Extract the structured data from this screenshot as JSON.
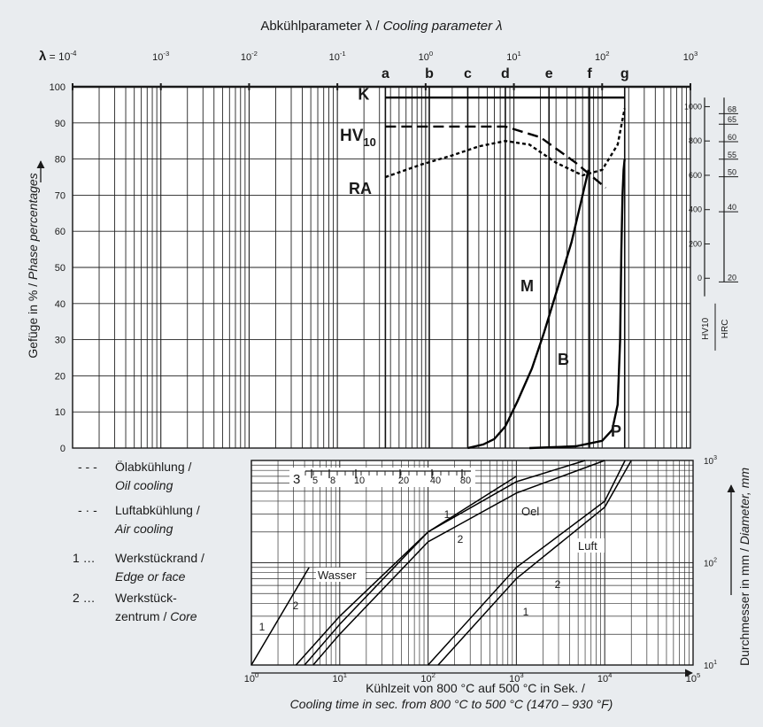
{
  "chart_data": [
    {
      "type": "line",
      "title": "Abkühlparameter λ / Cooling parameter λ",
      "title_de": "Abkühlparameter λ /",
      "title_en": "Cooling parameter λ",
      "x_scale": "log",
      "xlim": [
        0.0001,
        1000
      ],
      "ylim": [
        0,
        100
      ],
      "lambda_prefix": "λ = ",
      "x_ticks": [
        {
          "base": "10",
          "exp": "-4"
        },
        {
          "base": "10",
          "exp": "-3"
        },
        {
          "base": "10",
          "exp": "-2"
        },
        {
          "base": "10",
          "exp": "-1"
        },
        {
          "base": "10",
          "exp": "0"
        },
        {
          "base": "10",
          "exp": "1"
        },
        {
          "base": "10",
          "exp": "2"
        },
        {
          "base": "10",
          "exp": "3"
        }
      ],
      "y_ticks": [
        "0",
        "10",
        "20",
        "30",
        "40",
        "50",
        "60",
        "70",
        "80",
        "90",
        "100"
      ],
      "ylabel_de": "Gefüge in % / ",
      "ylabel_en": "Phase percentages",
      "letters": [
        {
          "label": "a",
          "x": 0.35
        },
        {
          "label": "b",
          "x": 1.1
        },
        {
          "label": "c",
          "x": 3.0
        },
        {
          "label": "d",
          "x": 8.0
        },
        {
          "label": "e",
          "x": 25
        },
        {
          "label": "f",
          "x": 72
        },
        {
          "label": "g",
          "x": 180
        }
      ],
      "region_labels": {
        "K": "K",
        "HV": "HV",
        "HV_sub": "10",
        "RA": "RA",
        "M": "M",
        "B": "B",
        "P": "P"
      },
      "series": [
        {
          "name": "K",
          "style": "solid",
          "points": [
            [
              0.35,
              97
            ],
            [
              180,
              97
            ]
          ]
        },
        {
          "name": "M",
          "style": "solid",
          "points": [
            [
              3,
              0
            ],
            [
              4.5,
              1
            ],
            [
              6,
              2.5
            ],
            [
              8,
              6
            ],
            [
              11,
              13
            ],
            [
              16,
              22
            ],
            [
              22,
              32
            ],
            [
              32,
              45
            ],
            [
              45,
              57
            ],
            [
              60,
              70
            ],
            [
              70,
              77
            ]
          ]
        },
        {
          "name": "P",
          "style": "solid",
          "points": [
            [
              15,
              0
            ],
            [
              50,
              0.5
            ],
            [
              100,
              2
            ],
            [
              130,
              5
            ],
            [
              150,
              12
            ],
            [
              160,
              30
            ],
            [
              165,
              55
            ],
            [
              170,
              70
            ],
            [
              175,
              77
            ],
            [
              180,
              80
            ]
          ]
        },
        {
          "name": "HV10",
          "style": "dashed",
          "points": [
            [
              0.35,
              89
            ],
            [
              2,
              89
            ],
            [
              8,
              89
            ],
            [
              20,
              86
            ],
            [
              50,
              79
            ],
            [
              110,
              72
            ]
          ]
        },
        {
          "name": "RA",
          "style": "dotted",
          "points": [
            [
              0.35,
              75
            ],
            [
              0.9,
              78.5
            ],
            [
              2,
              81
            ],
            [
              4,
              83.5
            ],
            [
              8,
              85
            ],
            [
              15,
              84
            ],
            [
              30,
              79
            ],
            [
              60,
              75.5
            ],
            [
              100,
              77
            ],
            [
              150,
              84
            ],
            [
              180,
              94
            ]
          ]
        }
      ],
      "right_axis": {
        "hv_ticks": [
          "0",
          "200",
          "400",
          "600",
          "800",
          "1000"
        ],
        "hrc_ticks": [
          "20",
          "40",
          "50",
          "55",
          "60",
          "65",
          "68"
        ],
        "hv_label": "HV10",
        "hrc_label": "HRC"
      }
    },
    {
      "type": "line",
      "x_scale": "log",
      "y_scale": "log",
      "xlim": [
        1,
        100000
      ],
      "ylim": [
        10,
        1000
      ],
      "x_ticks": [
        {
          "base": "10",
          "exp": "0"
        },
        {
          "base": "10",
          "exp": "1"
        },
        {
          "base": "10",
          "exp": "2"
        },
        {
          "base": "10",
          "exp": "3"
        },
        {
          "base": "10",
          "exp": "4"
        },
        {
          "base": "10",
          "exp": "5"
        }
      ],
      "y_ticks": [
        {
          "base": "10",
          "exp": "1"
        },
        {
          "base": "10",
          "exp": "2"
        },
        {
          "base": "10",
          "exp": "3"
        }
      ],
      "xlabel_de": "Kühlzeit von 800 °C auf 500 °C in Sek. /",
      "xlabel_en": "Cooling time in sec. from 800 °C to 500 °C (1470 – 930 °F)",
      "ylabel_de": "Durchmesser in mm / ",
      "ylabel_en": "Diameter, mm",
      "scale3": {
        "label": "3",
        "ticks": [
          "5",
          "8",
          "10",
          "20",
          "40",
          "80"
        ]
      },
      "medium_labels": {
        "wasser": "Wasser",
        "oel": "Oel",
        "luft": "Luft"
      },
      "series": [
        {
          "name": "Wasser 1",
          "number": "1",
          "points": [
            [
              1,
              10
            ],
            [
              4.5,
              90
            ]
          ]
        },
        {
          "name": "Wasser 2",
          "number": "2",
          "points": [
            [
              3.2,
              10
            ],
            [
              10,
              30
            ],
            [
              100,
              200
            ],
            [
              1000,
              700
            ]
          ]
        },
        {
          "name": "Oel 1",
          "number": "1",
          "points": [
            [
              4,
              10
            ],
            [
              10,
              25
            ],
            [
              100,
              200
            ],
            [
              1000,
              620
            ],
            [
              6000,
              1000
            ]
          ]
        },
        {
          "name": "Oel 2",
          "number": "2",
          "points": [
            [
              5,
              10
            ],
            [
              10,
              20
            ],
            [
              100,
              160
            ],
            [
              1000,
              480
            ],
            [
              10000,
              1000
            ]
          ]
        },
        {
          "name": "Luft 1",
          "number": "1",
          "points": [
            [
              100,
              10
            ],
            [
              1000,
              90
            ],
            [
              10000,
              400
            ],
            [
              17000,
              1000
            ]
          ]
        },
        {
          "name": "Luft 2",
          "number": "2",
          "points": [
            [
              130,
              10
            ],
            [
              1000,
              70
            ],
            [
              10000,
              350
            ],
            [
              20000,
              1000
            ]
          ]
        }
      ]
    }
  ],
  "legend": [
    {
      "symbol": "- - -",
      "label_de": "Ölabkühlung /",
      "label_en": "Oil cooling"
    },
    {
      "symbol": "- · -",
      "label_de": "Luftabkühlung /",
      "label_en": "Air cooling"
    },
    {
      "symbol": "1 …",
      "label_de": "Werkstückrand /",
      "label_en": "Edge or face"
    },
    {
      "symbol": "2 …",
      "label_de": "Werkstück-",
      "label_de2": "zentrum / ",
      "label_en": "Core"
    }
  ]
}
